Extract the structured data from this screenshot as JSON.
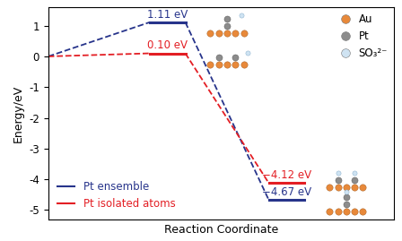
{
  "chart_data": {
    "type": "energy_profile",
    "y_label": "Energy/eV",
    "x_label": "Reaction Coordinate",
    "categories": [
      null,
      null,
      null
    ],
    "ylim": [
      -5.3,
      1.6
    ],
    "yticks": [
      -5,
      -4,
      -3,
      -2,
      -1,
      0,
      1
    ],
    "tick_labels": "y",
    "line_style": "dashed",
    "legend": "lower left",
    "data_labels": true,
    "series": [
      {
        "name": "Pt ensemble",
        "color": "#27348b",
        "values": [
          0,
          1.11,
          -4.67
        ],
        "value_labels": [
          null,
          "1.11 eV",
          "−4.67 eV"
        ]
      },
      {
        "name": "Pt isolated atoms",
        "color": "#e31e24",
        "values": [
          0,
          0.1,
          -4.12
        ],
        "value_labels": [
          null,
          "0.10 eV",
          "−4.12 eV"
        ]
      }
    ],
    "species": [
      {
        "name": "Au",
        "color": "#e8893a"
      },
      {
        "name": "Pt",
        "color": "#8c8c8c"
      },
      {
        "name": "SO₃²⁻",
        "color": "#cfe3f2"
      }
    ]
  }
}
